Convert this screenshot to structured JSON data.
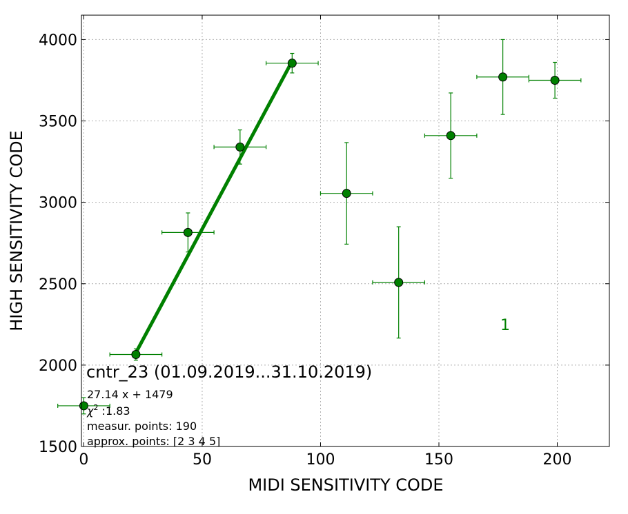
{
  "chart_data": {
    "type": "scatter",
    "xlabel": "MIDI SENSITIVITY CODE",
    "ylabel": "HIGH SENSITIVITY CODE",
    "xlim": [
      -1,
      222
    ],
    "ylim": [
      1500,
      4150
    ],
    "x_ticks": [
      0,
      50,
      100,
      150,
      200
    ],
    "y_ticks": [
      1500,
      2000,
      2500,
      3000,
      3500,
      4000
    ],
    "grid": true,
    "colors": {
      "series": "#008000",
      "text": "#000000",
      "grid": "#b0b0b0"
    },
    "series": [
      {
        "points": [
          {
            "x": 0,
            "y": 1750,
            "xerr": 11,
            "yerr": 50
          },
          {
            "x": 22,
            "y": 2065,
            "xerr": 11,
            "yerr": 35
          },
          {
            "x": 44,
            "y": 2815,
            "xerr": 11,
            "yerr": 120
          },
          {
            "x": 66,
            "y": 3340,
            "xerr": 11,
            "yerr": 105
          },
          {
            "x": 88,
            "y": 3855,
            "xerr": 11,
            "yerr": 60
          },
          {
            "x": 111,
            "y": 3055,
            "xerr": 11,
            "yerr": 312
          },
          {
            "x": 133,
            "y": 2508,
            "xerr": 11,
            "yerr": 342
          },
          {
            "x": 155,
            "y": 3410,
            "xerr": 11,
            "yerr": 262
          },
          {
            "x": 177,
            "y": 3770,
            "xerr": 11,
            "yerr": 230
          },
          {
            "x": 199,
            "y": 3750,
            "xerr": 11,
            "yerr": 110
          }
        ]
      }
    ],
    "fit_line": {
      "slope": 27.14,
      "intercept": 1479,
      "x_range": [
        22,
        88
      ]
    },
    "annotations": {
      "label_1": {
        "text": "1",
        "x": 178,
        "y": 2250
      },
      "title": "cntr_23 (01.09.2019...31.10.2019)",
      "equation": "27.14 x + 1479",
      "chi_label": "χ",
      "chi_sup": "2",
      "chi_value": " :1.83",
      "measur": "measur. points: 190",
      "approx": "approx. points: [2 3 4 5]"
    }
  }
}
